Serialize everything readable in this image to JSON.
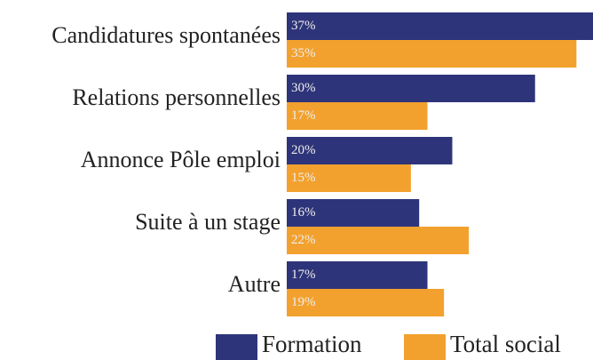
{
  "chart_data": {
    "type": "bar",
    "orientation": "horizontal",
    "categories": [
      "Candidatures spontanées",
      "Relations personnelles",
      "Annonce Pôle emploi",
      "Suite à un stage",
      "Autre"
    ],
    "series": [
      {
        "name": "Formation",
        "color": "#2e3479",
        "values": [
          37,
          30,
          20,
          16,
          17
        ],
        "value_labels": [
          "37%",
          "30%",
          "20%",
          "16%",
          "17%"
        ]
      },
      {
        "name": "Total social",
        "color": "#f2a12e",
        "values": [
          35,
          17,
          15,
          22,
          19
        ],
        "value_labels": [
          "35%",
          "17%",
          "15%",
          "22%",
          "19%"
        ]
      }
    ],
    "legend": "bottom"
  }
}
